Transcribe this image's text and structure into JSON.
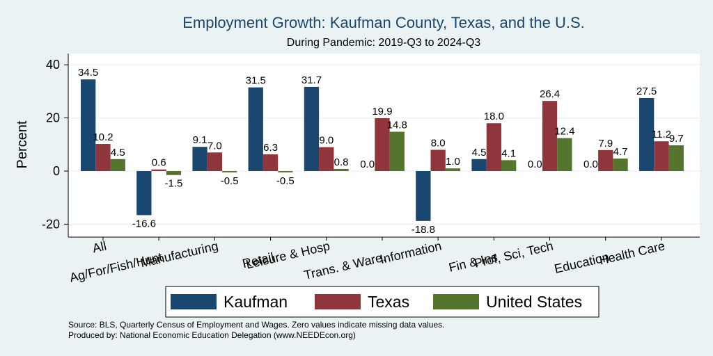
{
  "chart_data": {
    "type": "bar",
    "title": "Employment Growth: Kaufman County, Texas, and the U.S.",
    "subtitle": "During Pandemic: 2019-Q3 to 2024-Q3",
    "ylabel": "Percent",
    "xlabel": "",
    "ylim": [
      -25,
      45
    ],
    "yticks": [
      -20,
      0,
      20,
      40
    ],
    "ytick_labels": [
      "-20",
      "0",
      "20",
      "40"
    ],
    "categories": [
      "All",
      "Ag/For/Fish/Hunt",
      "Manufacturing",
      "Retail",
      "Leisure & Hosp",
      "Trans. & Ware.",
      "Information",
      "Fin & Ins",
      "Prof, Sci, Tech",
      "Education",
      "Health Care"
    ],
    "series": [
      {
        "name": "Kaufman",
        "color": "#1a476f",
        "values": [
          34.5,
          -16.6,
          9.1,
          31.5,
          31.7,
          0.0,
          -18.8,
          4.5,
          0.0,
          0.0,
          27.5
        ],
        "labels": [
          "34.5",
          "-16.6",
          "9.1",
          "31.5",
          "31.7",
          "0.0",
          "-18.8",
          "4.5",
          "0.0",
          "0.0",
          "27.5"
        ]
      },
      {
        "name": "Texas",
        "color": "#90353b",
        "values": [
          10.2,
          0.6,
          7.0,
          6.3,
          9.0,
          19.9,
          8.0,
          18.0,
          26.4,
          7.9,
          11.2
        ],
        "labels": [
          "10.2",
          "0.6",
          "7.0",
          "6.3",
          "9.0",
          "19.9",
          "8.0",
          "18.0",
          "26.4",
          "7.9",
          "11.2"
        ]
      },
      {
        "name": "United States",
        "color": "#55752f",
        "values": [
          4.5,
          -1.5,
          -0.5,
          -0.5,
          0.8,
          14.8,
          1.0,
          4.1,
          12.4,
          4.7,
          9.7
        ],
        "labels": [
          "4.5",
          "-1.5",
          "-0.5",
          "-0.5",
          "0.8",
          "14.8",
          "1.0",
          "4.1",
          "12.4",
          "4.7",
          "9.7"
        ]
      }
    ],
    "legend": {
      "position": "bottom",
      "items": [
        "Kaufman",
        "Texas",
        "United States"
      ]
    },
    "grid": true,
    "notes": [
      "Source: BLS, Quarterly Census of Employment and Wages. Zero values indicate missing data values.",
      "Produced by: National Economic Education Delegation (www.NEEDEcon.org)"
    ]
  },
  "colors": {
    "background": "#eaf2f3",
    "plot_background": "#ffffff",
    "grid": "#eaf2f3"
  }
}
